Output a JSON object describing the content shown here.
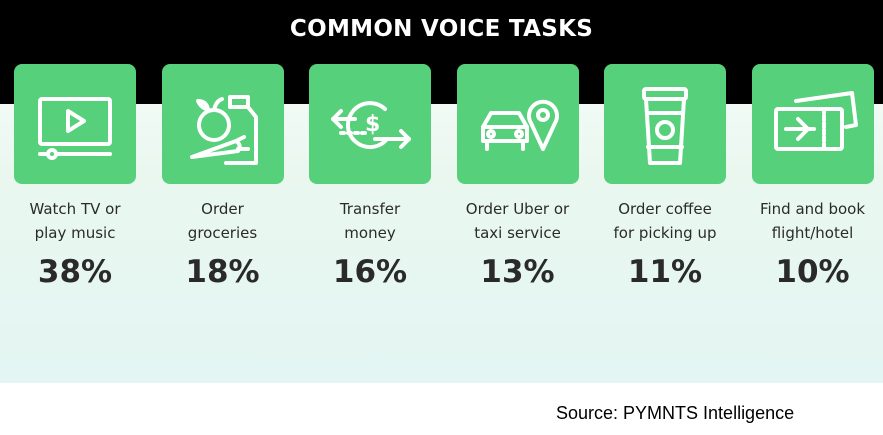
{
  "chart_data": {
    "type": "bar",
    "title": "COMMON VOICE TASKS",
    "categories": [
      "Watch TV or play music",
      "Order groceries",
      "Transfer money",
      "Order Uber or taxi service",
      "Order coffee for picking up",
      "Find and book flight/hotel"
    ],
    "label_lines": [
      [
        "Watch TV or",
        "play music"
      ],
      [
        "Order",
        "groceries"
      ],
      [
        "Transfer",
        "money"
      ],
      [
        "Order Uber or",
        "taxi service"
      ],
      [
        "Order coffee",
        "for picking up"
      ],
      [
        "Find and book",
        "flight/hotel"
      ]
    ],
    "values": [
      38,
      18,
      16,
      13,
      11,
      10
    ],
    "value_labels": [
      "38%",
      "18%",
      "16%",
      "13%",
      "11%",
      "10%"
    ],
    "unit": "%",
    "icons": [
      "tv-play-icon",
      "groceries-icon",
      "money-transfer-icon",
      "taxi-location-icon",
      "coffee-cup-icon",
      "ticket-icon"
    ]
  },
  "source": "Source: PYMNTS Intelligence",
  "colors": {
    "header": "#000000",
    "tile": "#56d07a",
    "icon_stroke": "#ffffff",
    "text": "#2b2b2b"
  }
}
